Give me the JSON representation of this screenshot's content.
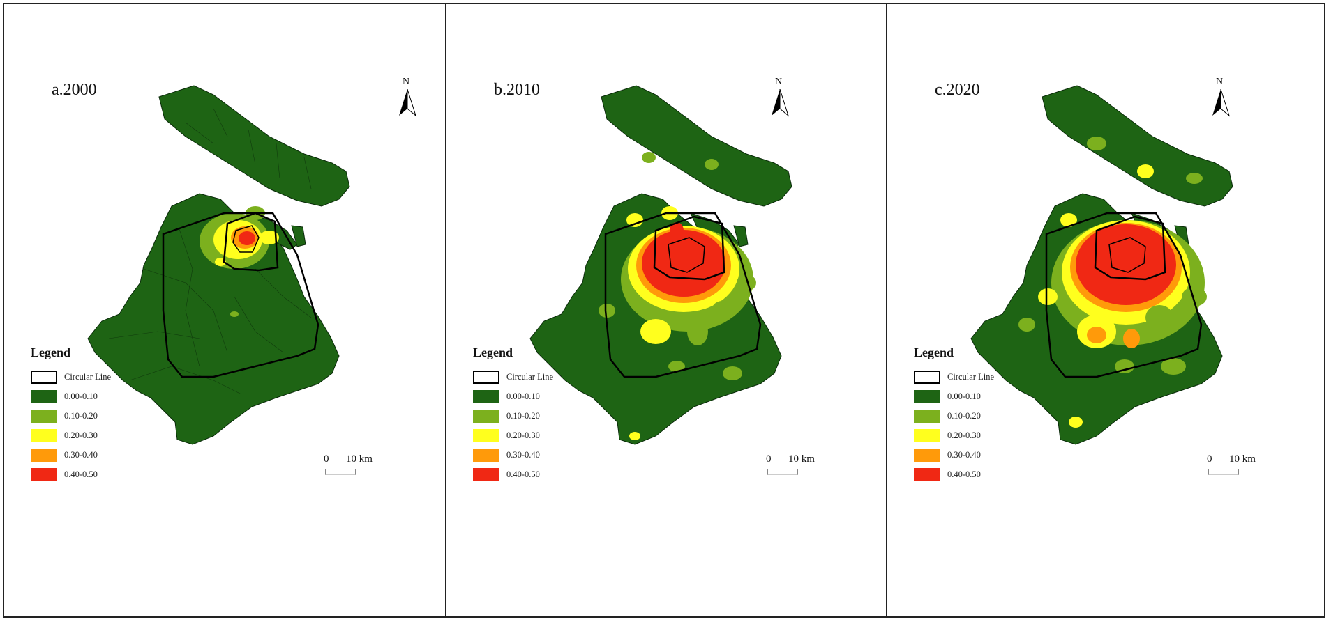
{
  "figure": {
    "panels": [
      {
        "label": "a.2000"
      },
      {
        "label": "b.2010"
      },
      {
        "label": "c.2020"
      }
    ]
  },
  "north_arrow": {
    "letter": "N"
  },
  "legend": {
    "title": "Legend",
    "items": [
      {
        "label": "Circular Line",
        "color": "#ffffff",
        "kind": "outline"
      },
      {
        "label": "0.00-0.10",
        "color": "#1e6414"
      },
      {
        "label": "0.10-0.20",
        "color": "#7cb01e"
      },
      {
        "label": "0.20-0.30",
        "color": "#ffff1e"
      },
      {
        "label": "0.30-0.40",
        "color": "#ff9a0a"
      },
      {
        "label": "0.40-0.50",
        "color": "#f02814"
      }
    ]
  },
  "scale_bar": {
    "zero": "0",
    "ten": "10 km"
  },
  "colors": {
    "base": "#1e6414",
    "c010_020": "#7cb01e",
    "c020_030": "#ffff1e",
    "c030_040": "#ff9a0a",
    "c040_050": "#f02814",
    "boundary": "#0a2a0a",
    "ring": "#000000"
  }
}
